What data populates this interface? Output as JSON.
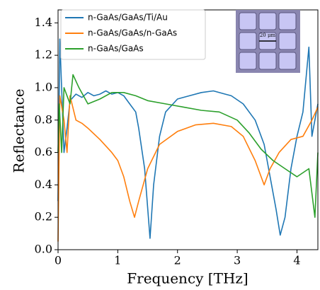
{
  "chart_data": {
    "type": "line",
    "xlabel": "Frequency [THz]",
    "ylabel": "Reflectance",
    "xlim": [
      0,
      4.35
    ],
    "ylim": [
      0,
      1.48
    ],
    "xticks": [
      0,
      1,
      2,
      3,
      4
    ],
    "yticks": [
      {
        "value": 0,
        "label": "0.0"
      },
      {
        "value": 0.2,
        "label": "0.2"
      },
      {
        "value": 0.4,
        "label": "0.4"
      },
      {
        "value": 0.6,
        "label": "0.6"
      },
      {
        "value": 0.8,
        "label": "0.8"
      },
      {
        "value": 1,
        "label": "1.0"
      },
      {
        "value": 1.2,
        "label": "1.2"
      },
      {
        "value": 1.4,
        "label": "1.4"
      }
    ],
    "legend": "upper left",
    "inset_label": "20 μm",
    "series": [
      {
        "name": "n-GaAs/GaAs/Ti/Au",
        "color": "#1f77b4",
        "x": [
          0,
          0.03,
          0.1,
          0.15,
          0.2,
          0.3,
          0.4,
          0.5,
          0.6,
          0.7,
          0.8,
          0.9,
          1.0,
          1.1,
          1.2,
          1.3,
          1.35,
          1.45,
          1.54,
          1.6,
          1.7,
          1.8,
          2.0,
          2.2,
          2.4,
          2.6,
          2.8,
          2.9,
          3.1,
          3.3,
          3.45,
          3.55,
          3.65,
          3.72,
          3.8,
          3.9,
          4.0,
          4.1,
          4.2,
          4.25,
          4.3,
          4.35
        ],
        "values": [
          0.3,
          1.3,
          0.6,
          0.75,
          0.92,
          0.96,
          0.94,
          0.97,
          0.95,
          0.96,
          0.98,
          0.96,
          0.97,
          0.95,
          0.9,
          0.85,
          0.75,
          0.5,
          0.07,
          0.4,
          0.7,
          0.85,
          0.93,
          0.95,
          0.97,
          0.98,
          0.96,
          0.95,
          0.9,
          0.8,
          0.65,
          0.45,
          0.25,
          0.09,
          0.2,
          0.5,
          0.7,
          0.85,
          1.25,
          0.7,
          0.8,
          0.9
        ]
      },
      {
        "name": "n-GaAs/GaAs/n-GaAs",
        "color": "#ff7f0e",
        "x": [
          0,
          0.03,
          0.1,
          0.15,
          0.2,
          0.3,
          0.4,
          0.5,
          0.7,
          0.9,
          1.0,
          1.1,
          1.2,
          1.28,
          1.35,
          1.5,
          1.7,
          2.0,
          2.3,
          2.6,
          2.9,
          3.1,
          3.3,
          3.45,
          3.55,
          3.7,
          3.9,
          4.1,
          4.25,
          4.35
        ],
        "values": [
          0.05,
          0.95,
          0.8,
          0.6,
          0.95,
          0.8,
          0.78,
          0.75,
          0.68,
          0.6,
          0.55,
          0.45,
          0.3,
          0.2,
          0.3,
          0.5,
          0.65,
          0.73,
          0.77,
          0.78,
          0.76,
          0.7,
          0.55,
          0.4,
          0.5,
          0.6,
          0.68,
          0.7,
          0.8,
          0.88
        ]
      },
      {
        "name": "n-GaAs/GaAs",
        "color": "#2ca02c",
        "x": [
          0,
          0.02,
          0.06,
          0.1,
          0.2,
          0.25,
          0.35,
          0.5,
          0.7,
          0.9,
          1.1,
          1.3,
          1.5,
          1.8,
          2.1,
          2.4,
          2.7,
          3.0,
          3.2,
          3.4,
          3.6,
          3.8,
          4.0,
          4.2,
          4.3,
          4.35
        ],
        "values": [
          0.6,
          0.9,
          0.6,
          1.0,
          0.9,
          1.08,
          1.0,
          0.9,
          0.93,
          0.97,
          0.97,
          0.95,
          0.92,
          0.9,
          0.88,
          0.86,
          0.85,
          0.8,
          0.72,
          0.62,
          0.55,
          0.5,
          0.45,
          0.5,
          0.2,
          0.6
        ]
      }
    ]
  }
}
